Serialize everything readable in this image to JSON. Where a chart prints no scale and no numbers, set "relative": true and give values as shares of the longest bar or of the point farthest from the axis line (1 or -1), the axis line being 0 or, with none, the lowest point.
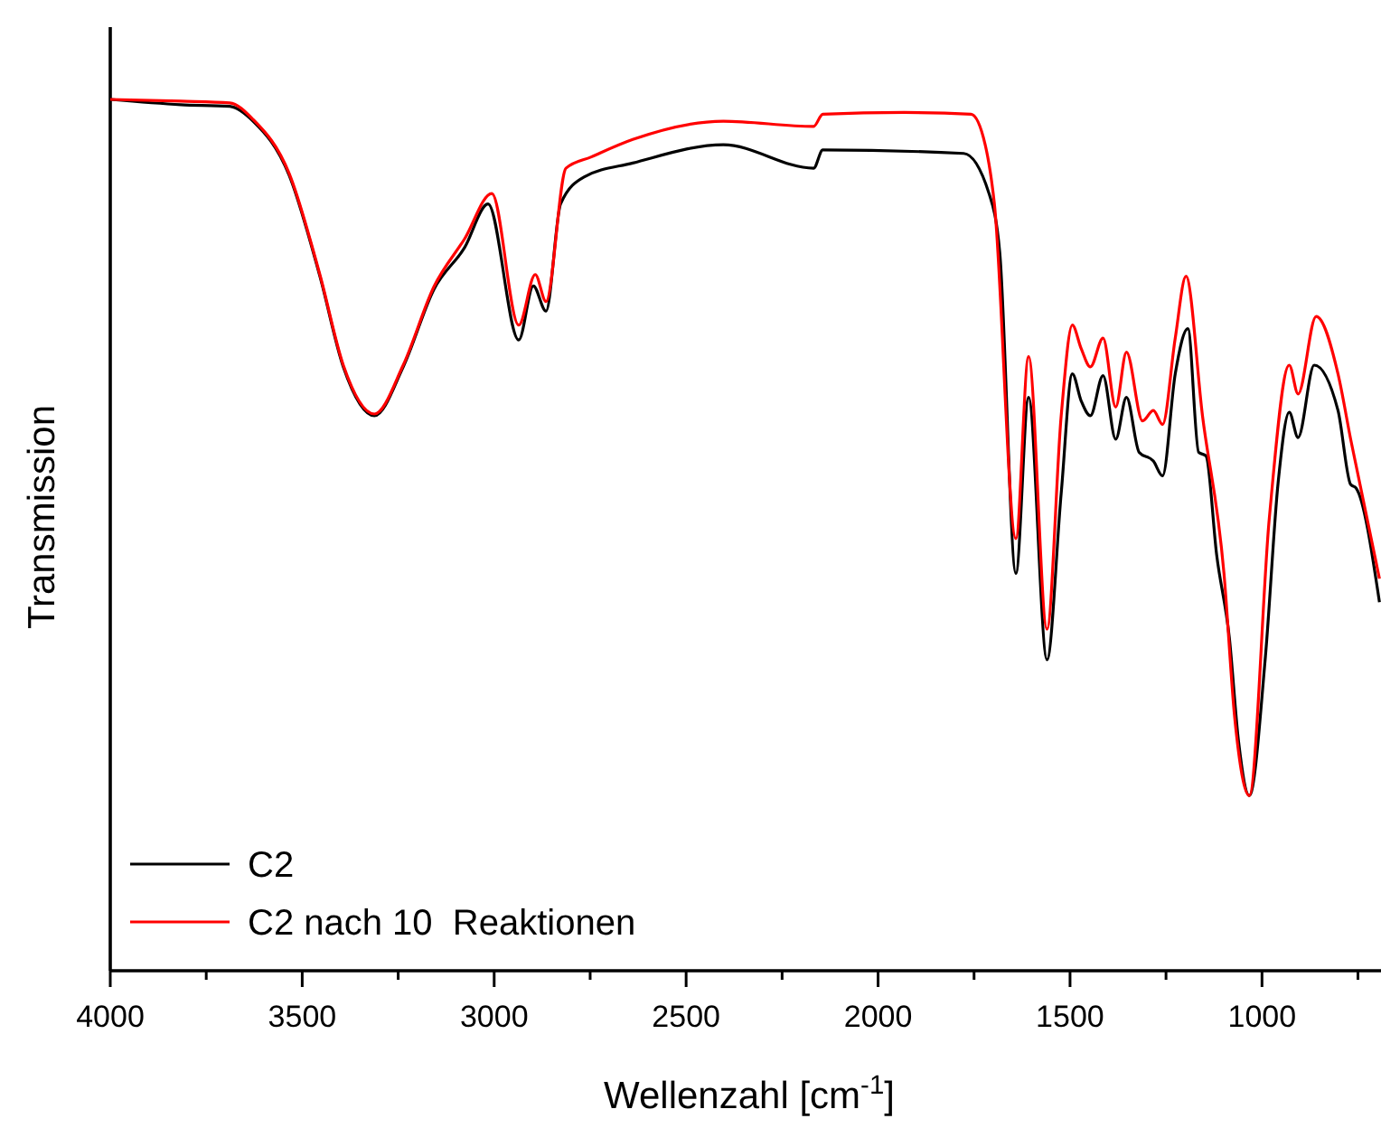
{
  "chart_data": {
    "type": "line",
    "relative": true,
    "xlabel": "Wellenzahl [cm$^{-1}$]",
    "ylabel": "Transmission",
    "xlim": [
      4000,
      690
    ],
    "xticks": [
      4000,
      {
        "value": 3750,
        "label": null
      },
      3500,
      {
        "value": 3250,
        "label": null
      },
      3000,
      {
        "value": 2750,
        "label": null
      },
      2500,
      {
        "value": 2250,
        "label": null
      },
      2000,
      {
        "value": 1750,
        "label": null
      },
      1500,
      {
        "value": 1250,
        "label": null
      },
      1000,
      {
        "value": 750,
        "label": null
      }
    ],
    "legend": "bottom left",
    "grid": false,
    "series": [
      {
        "name": "C2",
        "color": "#000000",
        "x": [
          4000,
          3816,
          3689,
          3628,
          3534,
          3454,
          3393,
          3312,
          3237,
          3157,
          3077,
          3016,
          2936,
          2898,
          2865,
          2827,
          2766,
          2639,
          2403,
          2168,
          2144,
          1777,
          1711,
          1683,
          1641,
          1608,
          1560,
          1523,
          1494,
          1471,
          1447,
          1414,
          1381,
          1353,
          1320,
          1283,
          1259,
          1226,
          1193,
          1165,
          1146,
          1118,
          1085,
          1061,
          1033,
          991,
          958,
          929,
          906,
          864,
          802,
          769,
          755,
          694
        ],
        "values": [
          1.0,
          0.994,
          0.992,
          0.975,
          0.913,
          0.797,
          0.693,
          0.637,
          0.693,
          0.782,
          0.83,
          0.88,
          0.724,
          0.786,
          0.757,
          0.88,
          0.911,
          0.927,
          0.948,
          0.921,
          0.942,
          0.938,
          0.892,
          0.824,
          0.456,
          0.658,
          0.357,
          0.548,
          0.685,
          0.654,
          0.637,
          0.683,
          0.61,
          0.658,
          0.595,
          0.585,
          0.568,
          0.685,
          0.737,
          0.595,
          0.591,
          0.477,
          0.382,
          0.263,
          0.201,
          0.361,
          0.56,
          0.641,
          0.612,
          0.695,
          0.643,
          0.558,
          0.554,
          0.423
        ]
      },
      {
        "name": "C2 nach 10  Reaktionen",
        "color": "#ff0000",
        "x": [
          4000,
          3816,
          3689,
          3628,
          3534,
          3454,
          3393,
          3312,
          3237,
          3157,
          3077,
          3006,
          2936,
          2893,
          2865,
          2813,
          2747,
          2639,
          2403,
          2168,
          2144,
          1932,
          1758,
          1721,
          1697,
          1641,
          1608,
          1560,
          1523,
          1494,
          1471,
          1447,
          1414,
          1381,
          1353,
          1311,
          1283,
          1259,
          1226,
          1198,
          1155,
          1099,
          1071,
          1033,
          981,
          929,
          906,
          859,
          802,
          769,
          694
        ],
        "values": [
          1.0,
          0.998,
          0.996,
          0.977,
          0.915,
          0.799,
          0.695,
          0.639,
          0.695,
          0.785,
          0.84,
          0.892,
          0.741,
          0.799,
          0.768,
          0.921,
          0.934,
          0.954,
          0.975,
          0.969,
          0.983,
          0.985,
          0.983,
          0.948,
          0.88,
          0.496,
          0.705,
          0.392,
          0.637,
          0.741,
          0.714,
          0.693,
          0.726,
          0.647,
          0.71,
          0.631,
          0.643,
          0.627,
          0.726,
          0.797,
          0.637,
          0.456,
          0.29,
          0.201,
          0.519,
          0.695,
          0.662,
          0.751,
          0.685,
          0.61,
          0.45
        ]
      }
    ]
  }
}
